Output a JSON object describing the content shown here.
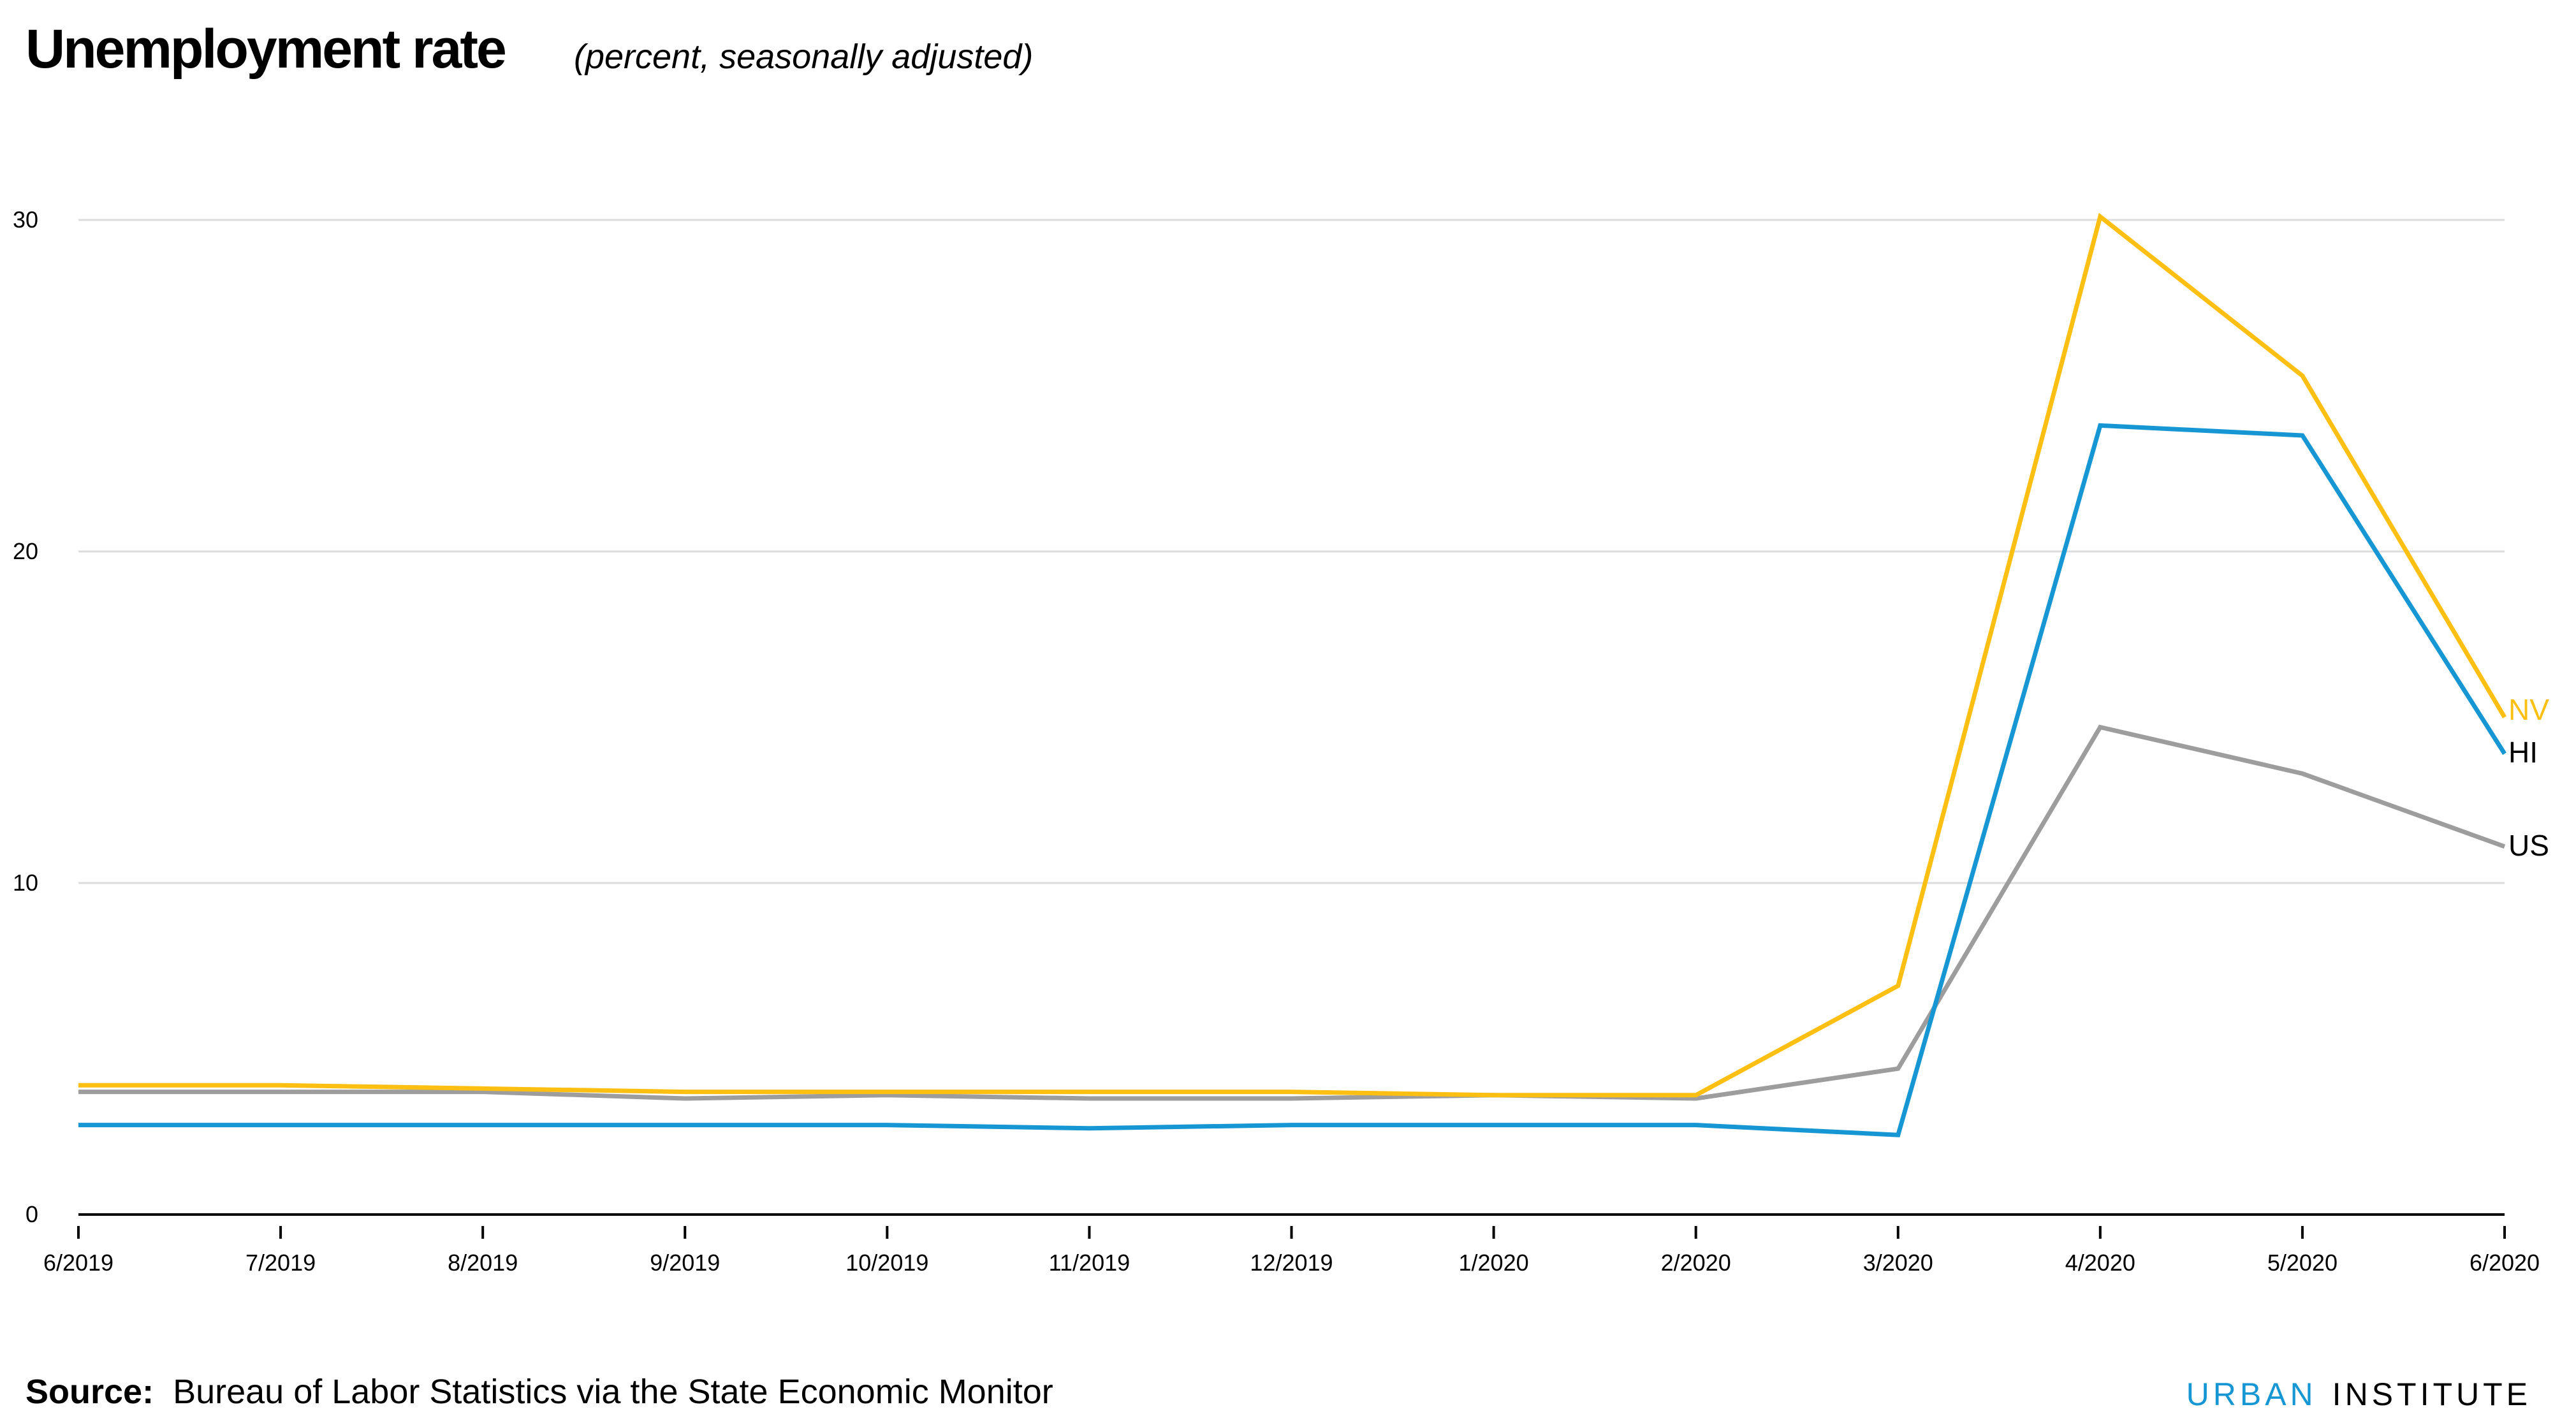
{
  "header": {
    "title": "Unemployment rate",
    "subtitle": "(percent, seasonally adjusted)"
  },
  "footer": {
    "source_label": "Source:",
    "source_text": "Bureau of Labor Statistics via the State Economic Monitor",
    "brand_part1": "URBAN",
    "brand_part2": "INSTITUTE"
  },
  "colors": {
    "NV": "#fdbf11",
    "HI": "#1696d2",
    "US": "#9d9d9d",
    "grid": "#dedddd",
    "axis": "#000000"
  },
  "chart_data": {
    "type": "line",
    "title": "Unemployment rate",
    "subtitle": "(percent, seasonally adjusted)",
    "xlabel": "",
    "ylabel": "",
    "ylim": [
      0,
      30
    ],
    "yticks": [
      0,
      10,
      20,
      30
    ],
    "grid": true,
    "legend_position": "direct labels at line ends (right)",
    "categories": [
      "6/2019",
      "7/2019",
      "8/2019",
      "9/2019",
      "10/2019",
      "11/2019",
      "12/2019",
      "1/2020",
      "2/2020",
      "3/2020",
      "4/2020",
      "5/2020",
      "6/2020"
    ],
    "series": [
      {
        "name": "NV",
        "values": [
          3.9,
          3.9,
          3.8,
          3.7,
          3.7,
          3.7,
          3.7,
          3.6,
          3.6,
          6.9,
          30.1,
          25.3,
          15.0
        ]
      },
      {
        "name": "HI",
        "values": [
          2.7,
          2.7,
          2.7,
          2.7,
          2.7,
          2.6,
          2.7,
          2.7,
          2.7,
          2.4,
          23.8,
          23.5,
          13.9
        ]
      },
      {
        "name": "US",
        "values": [
          3.7,
          3.7,
          3.7,
          3.5,
          3.6,
          3.5,
          3.5,
          3.6,
          3.5,
          4.4,
          14.7,
          13.3,
          11.1
        ]
      }
    ],
    "source": "Bureau of Labor Statistics via the State Economic Monitor"
  }
}
